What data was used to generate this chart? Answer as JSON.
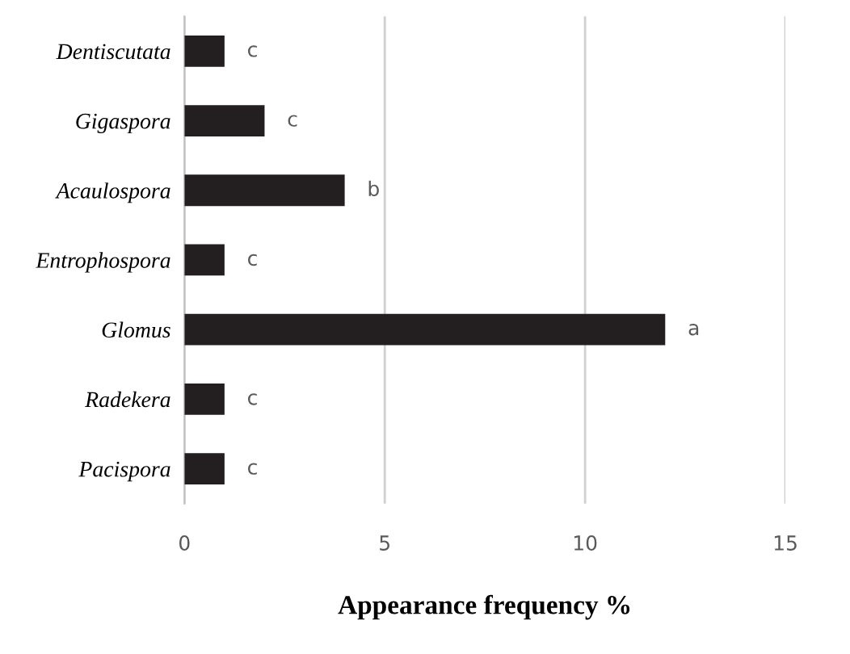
{
  "chart_data": {
    "type": "bar",
    "orientation": "horizontal",
    "categories": [
      "Dentiscutata",
      "Gigaspora",
      "Acaulospora",
      "Entrophospora",
      "Glomus",
      "Radekera",
      "Pacispora"
    ],
    "values": [
      1,
      2,
      4,
      1,
      12,
      1,
      1
    ],
    "value_labels": [
      "c",
      "c",
      "b",
      "c",
      "a",
      "c",
      "c"
    ],
    "color": "#231f20",
    "xlabel": "Appearance frequency %",
    "xlim": [
      0,
      15
    ],
    "xticks": [
      0,
      5,
      10,
      15
    ],
    "grid": "x",
    "legend": false
  }
}
